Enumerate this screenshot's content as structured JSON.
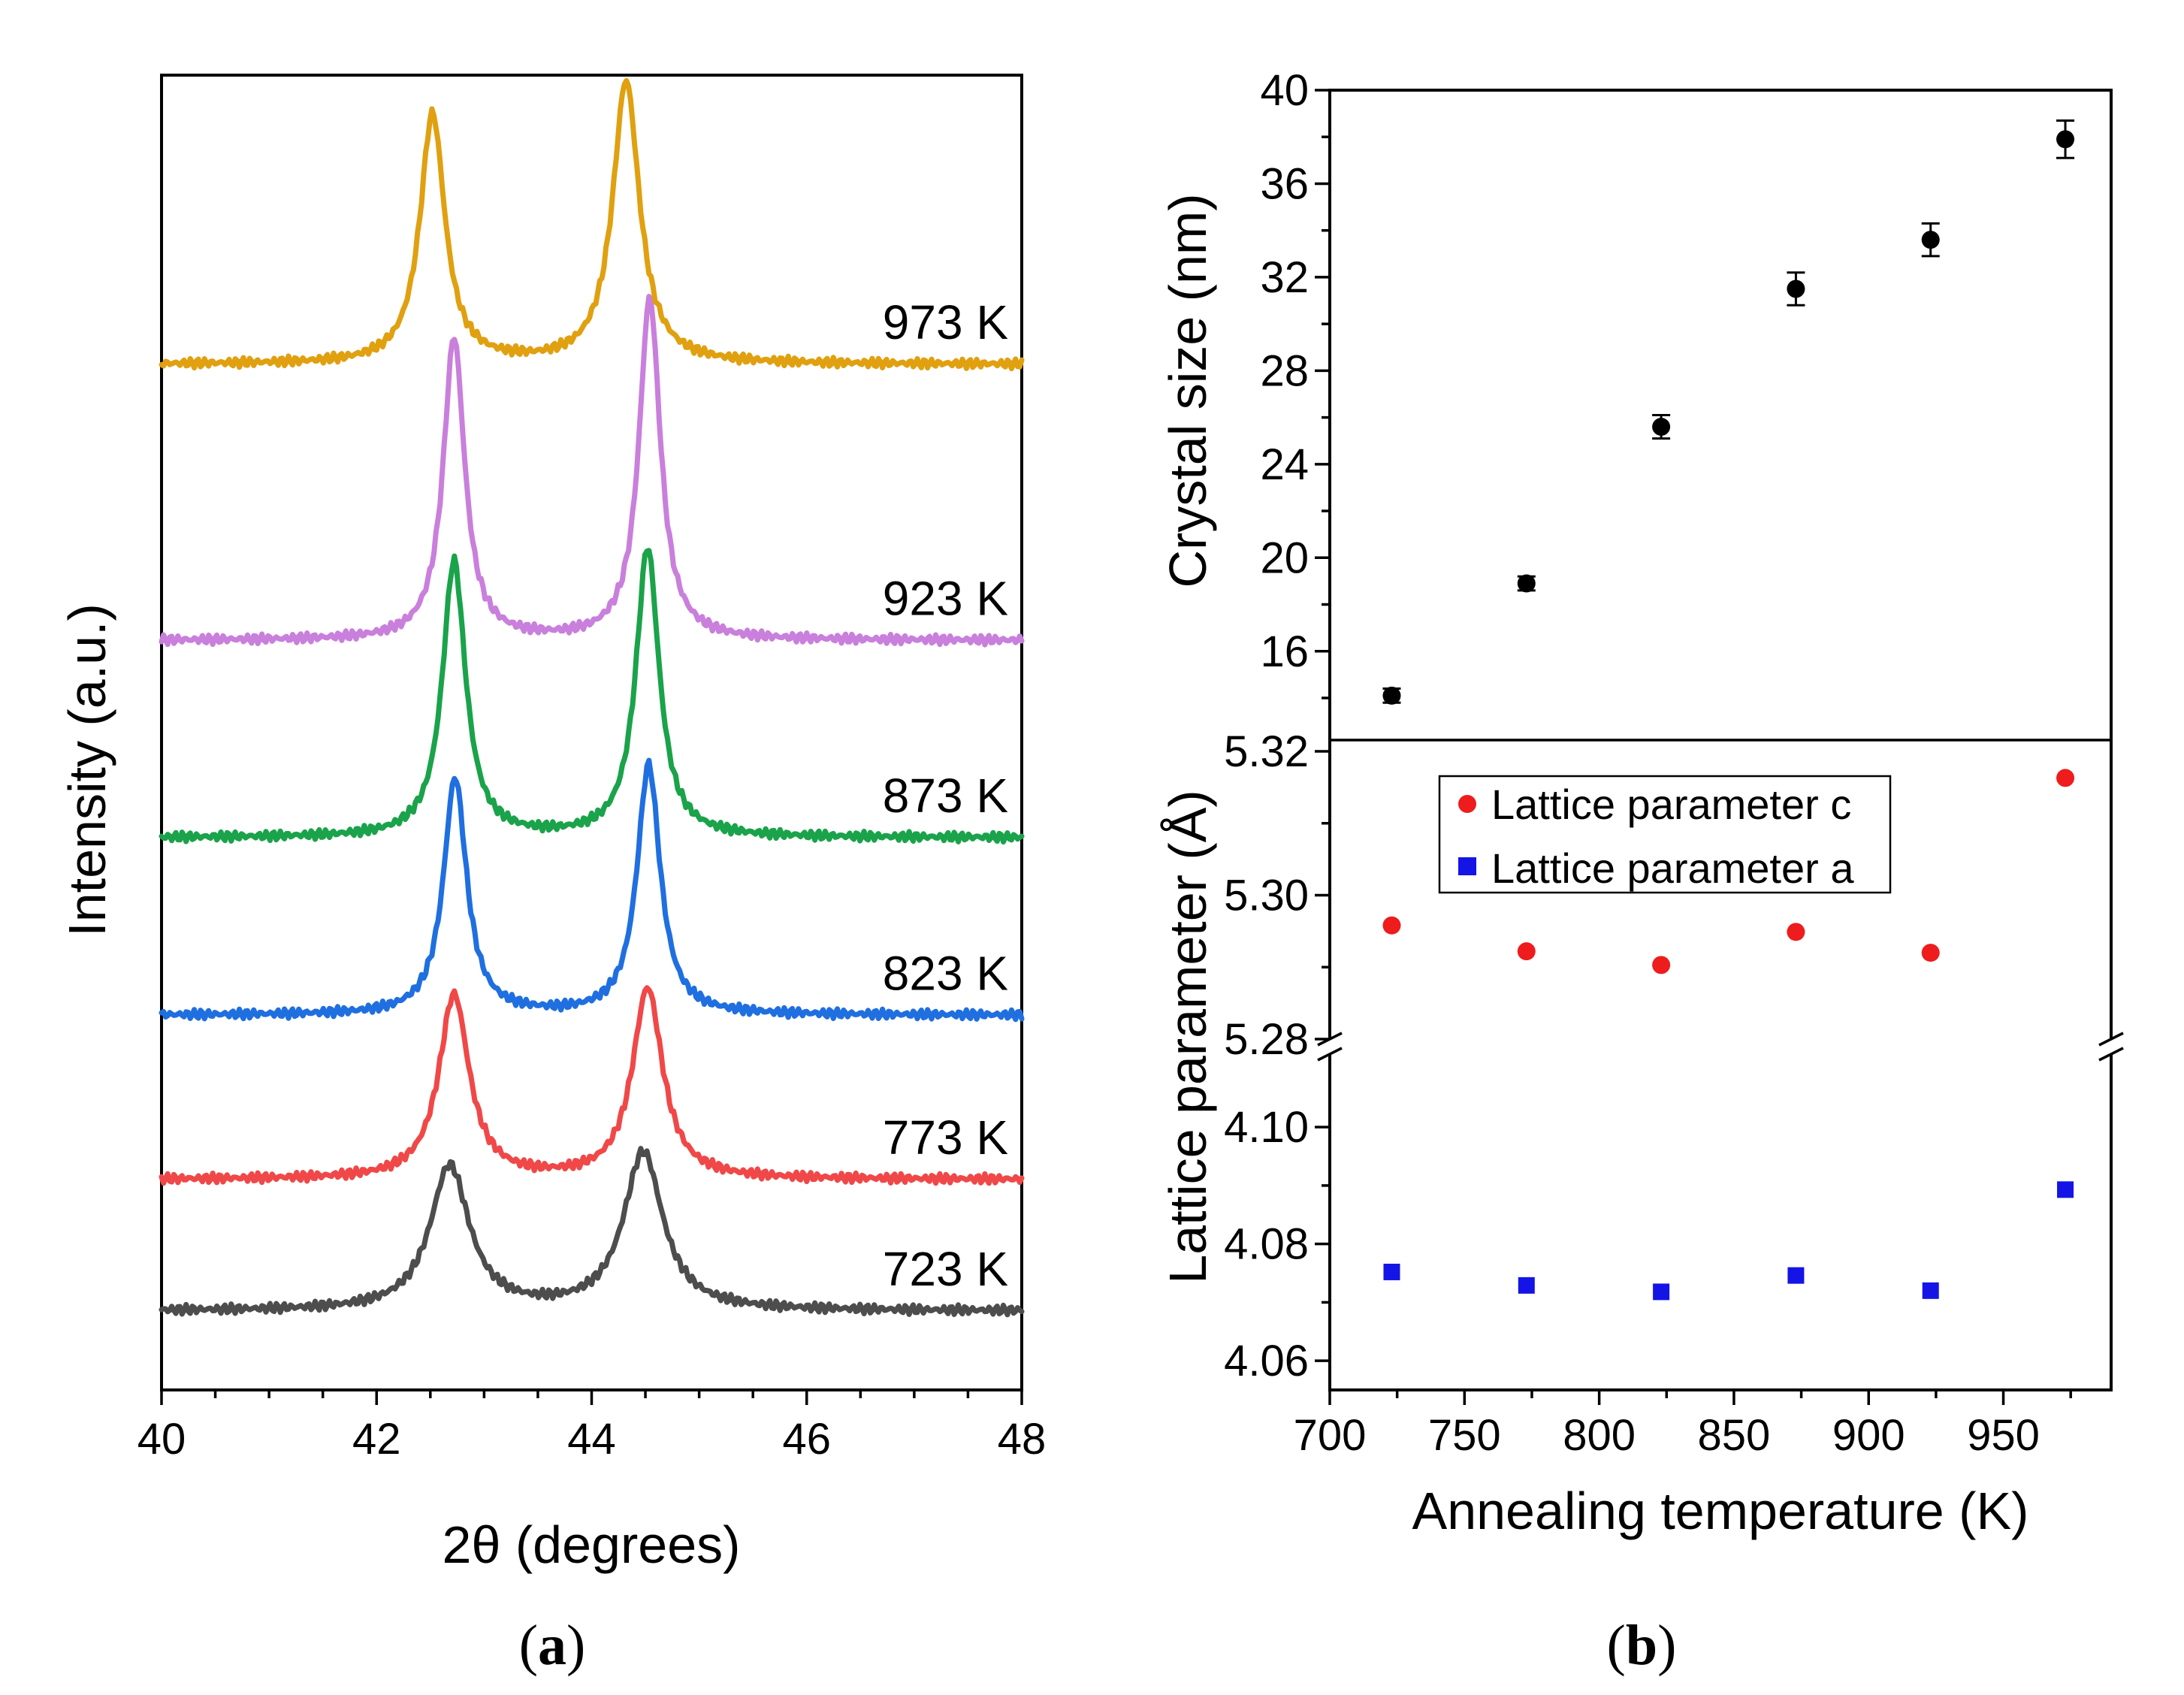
{
  "chart_data": [
    {
      "panel": "a",
      "type": "line",
      "caption_open": "(",
      "caption_letter": "a",
      "caption_close": ")",
      "xlabel": "2θ (degrees)",
      "ylabel": "Intensity (a.u.)",
      "xlim": [
        40,
        48
      ],
      "xticks": [
        "40",
        "42",
        "44",
        "46",
        "48"
      ],
      "series": [
        {
          "name": "723 K",
          "color": "#4d4d4d",
          "baseline": 0.06,
          "peak1": {
            "center": 42.68,
            "height": 0.11,
            "width": 0.22
          },
          "peak2": {
            "center": 44.48,
            "height": 0.12,
            "width": 0.22
          }
        },
        {
          "name": "773 K",
          "color": "#f04848",
          "baseline": 0.16,
          "peak1": {
            "center": 42.72,
            "height": 0.14,
            "width": 0.17
          },
          "peak2": {
            "center": 44.52,
            "height": 0.145,
            "width": 0.17
          }
        },
        {
          "name": "823 K",
          "color": "#1f6fe0",
          "baseline": 0.285,
          "peak1": {
            "center": 42.73,
            "height": 0.18,
            "width": 0.13
          },
          "peak2": {
            "center": 44.53,
            "height": 0.19,
            "width": 0.13
          }
        },
        {
          "name": "873 K",
          "color": "#1aa34a",
          "baseline": 0.42,
          "peak1": {
            "center": 42.72,
            "height": 0.21,
            "width": 0.13
          },
          "peak2": {
            "center": 44.52,
            "height": 0.22,
            "width": 0.13
          }
        },
        {
          "name": "923 K",
          "color": "#c97fdc",
          "baseline": 0.57,
          "peak1": {
            "center": 42.72,
            "height": 0.23,
            "width": 0.12
          },
          "peak2": {
            "center": 44.54,
            "height": 0.26,
            "width": 0.12
          }
        },
        {
          "name": "973 K",
          "color": "#e0a010",
          "baseline": 0.78,
          "peak1": {
            "center": 42.52,
            "height": 0.19,
            "width": 0.14
          },
          "peak2": {
            "center": 44.32,
            "height": 0.215,
            "width": 0.15
          }
        }
      ]
    },
    {
      "panel": "b-top",
      "type": "scatter",
      "ylabel": "Crystal size (nm)",
      "ylim": [
        12.2,
        40
      ],
      "yticks": [
        "16",
        "20",
        "24",
        "28",
        "32",
        "36",
        "40"
      ],
      "x": [
        723,
        773,
        823,
        873,
        923,
        973
      ],
      "values": [
        14.1,
        18.9,
        25.6,
        31.5,
        33.6,
        37.9
      ],
      "errors": [
        0.3,
        0.3,
        0.5,
        0.7,
        0.7,
        0.8
      ],
      "color": "#000000"
    },
    {
      "panel": "b-bottom",
      "type": "scatter",
      "caption_open": "(",
      "caption_letter": "b",
      "caption_close": ")",
      "xlabel": "Annealing temperature (K)",
      "ylabel": "Lattice parameter (Å)",
      "xlim": [
        700,
        990
      ],
      "xticks": [
        "700",
        "750",
        "800",
        "850",
        "900",
        "950"
      ],
      "upper_ylim": [
        5.28,
        5.32
      ],
      "upper_yticks": [
        "5.28",
        "5.30",
        "5.32"
      ],
      "lower_ylim": [
        4.055,
        4.1125
      ],
      "lower_yticks": [
        "4.06",
        "4.08",
        "4.10"
      ],
      "x": [
        723,
        773,
        823,
        873,
        923,
        973
      ],
      "series": [
        {
          "name": "Lattice parameter c",
          "color": "#ee1c1c",
          "marker": "circle",
          "values": [
            5.2958,
            5.2922,
            5.2903,
            5.2949,
            5.292,
            5.3163
          ]
        },
        {
          "name": "Lattice parameter a",
          "color": "#1414e6",
          "marker": "square",
          "values": [
            4.0752,
            4.0729,
            4.0718,
            4.0746,
            4.072,
            4.0893
          ]
        }
      ]
    }
  ]
}
